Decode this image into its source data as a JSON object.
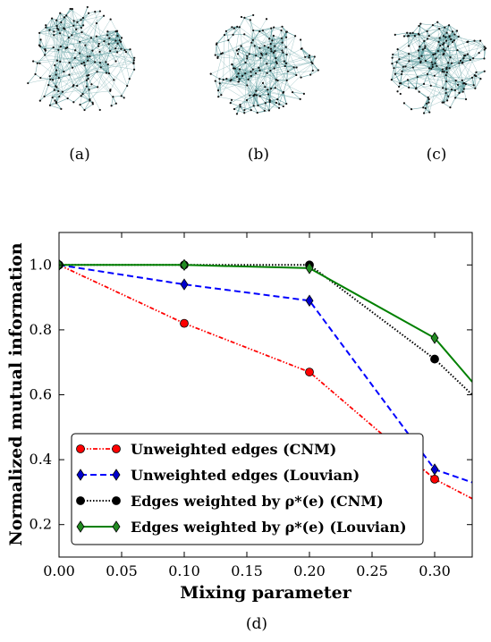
{
  "panels": {
    "a_label": "(a)",
    "b_label": "(b)",
    "c_label": "(c)",
    "d_label": "(d)",
    "network_colors": {
      "edge": "#5f9ea0",
      "node": "#111111"
    }
  },
  "chart_data": {
    "type": "line",
    "xlabel": "Mixing parameter",
    "ylabel": "Normalized mutual information",
    "xlim": [
      0.0,
      0.33
    ],
    "ylim": [
      0.1,
      1.1
    ],
    "xticks": [
      0.0,
      0.05,
      0.1,
      0.15,
      0.2,
      0.25,
      0.3
    ],
    "xtick_labels": [
      "0.00",
      "0.05",
      "0.10",
      "0.15",
      "0.20",
      "0.25",
      "0.30"
    ],
    "yticks": [
      0.2,
      0.4,
      0.6,
      0.8,
      1.0
    ],
    "ytick_labels": [
      "0.2",
      "0.4",
      "0.6",
      "0.8",
      "1.0"
    ],
    "grid": false,
    "legend_position": "lower-left",
    "series": [
      {
        "name": "Unweighted edges (CNM)",
        "color": "#ff0000",
        "line_style": "dash-dot-dot",
        "marker": "circle",
        "marker_color": "#ff0000",
        "x": [
          0.0,
          0.1,
          0.2,
          0.3,
          0.33
        ],
        "y": [
          1.0,
          0.82,
          0.67,
          0.34,
          0.28
        ]
      },
      {
        "name": "Unweighted edges (Louvian)",
        "color": "#0000ff",
        "line_style": "dashed",
        "marker": "diamond",
        "marker_color": "#0000cc",
        "x": [
          0.0,
          0.1,
          0.2,
          0.3,
          0.33
        ],
        "y": [
          1.0,
          0.94,
          0.89,
          0.37,
          0.33
        ]
      },
      {
        "name": "Edges weighted by ρ*(e) (CNM)",
        "color": "#000000",
        "line_style": "dotted",
        "marker": "circle",
        "marker_color": "#000000",
        "x": [
          0.0,
          0.1,
          0.2,
          0.3,
          0.33
        ],
        "y": [
          1.0,
          1.0,
          1.0,
          0.71,
          0.6
        ]
      },
      {
        "name": "Edges weighted by ρ*(e) (Louvian)",
        "color": "#008000",
        "line_style": "solid",
        "marker": "diamond",
        "marker_color": "#228b22",
        "x": [
          0.0,
          0.1,
          0.2,
          0.3,
          0.33
        ],
        "y": [
          1.0,
          1.0,
          0.99,
          0.775,
          0.64
        ]
      }
    ]
  }
}
